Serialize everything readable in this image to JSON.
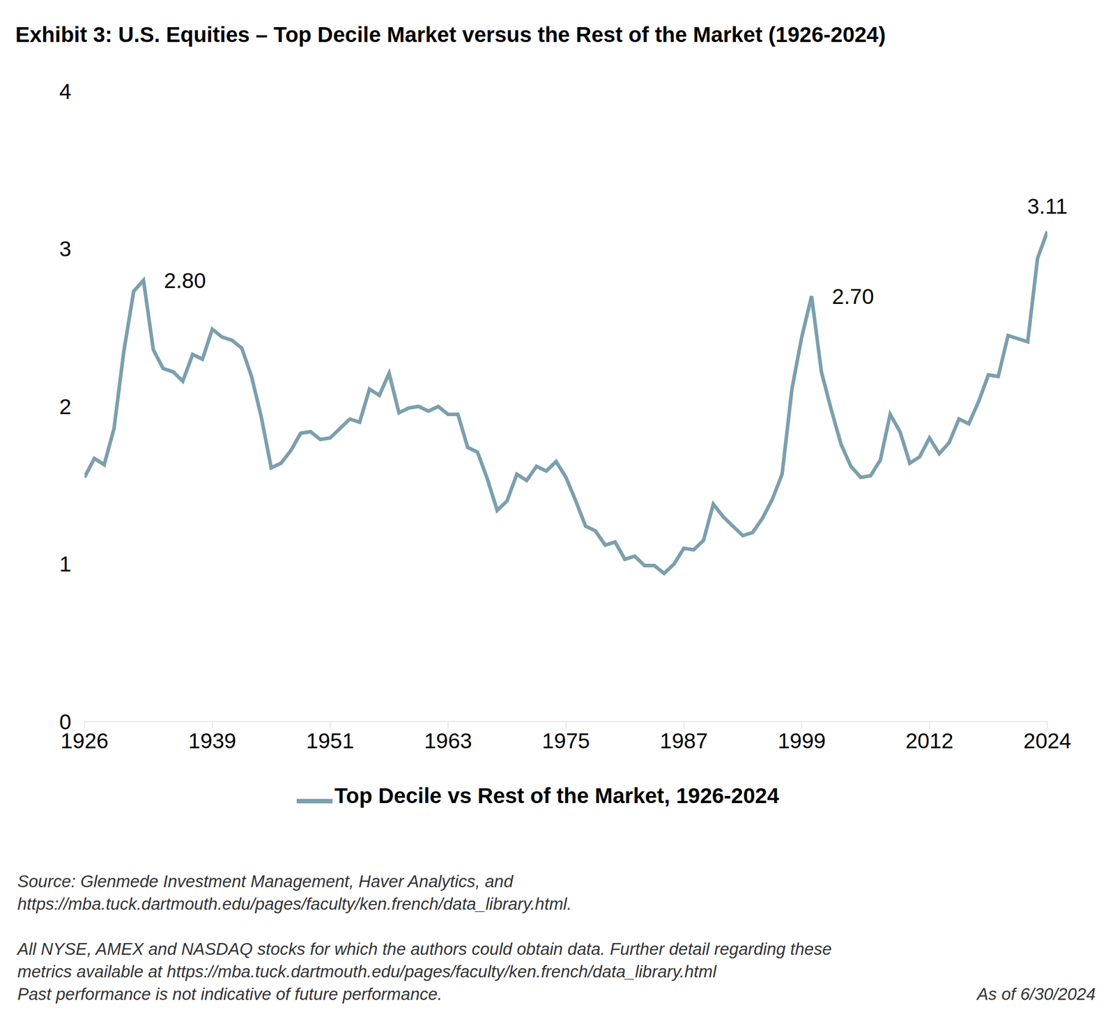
{
  "chart_data": {
    "type": "line",
    "title": "Exhibit 3: U.S. Equities – Top Decile Market versus the Rest of the Market (1926-2024)",
    "x": [
      1926,
      1927,
      1928,
      1929,
      1930,
      1931,
      1932,
      1933,
      1934,
      1935,
      1936,
      1937,
      1938,
      1939,
      1940,
      1941,
      1942,
      1943,
      1944,
      1945,
      1946,
      1947,
      1948,
      1949,
      1950,
      1951,
      1952,
      1953,
      1954,
      1955,
      1956,
      1957,
      1958,
      1959,
      1960,
      1961,
      1962,
      1963,
      1964,
      1965,
      1966,
      1967,
      1968,
      1969,
      1970,
      1971,
      1972,
      1973,
      1974,
      1975,
      1976,
      1977,
      1978,
      1979,
      1980,
      1981,
      1982,
      1983,
      1984,
      1985,
      1986,
      1987,
      1988,
      1989,
      1990,
      1991,
      1992,
      1993,
      1994,
      1995,
      1996,
      1997,
      1998,
      1999,
      2000,
      2001,
      2002,
      2003,
      2004,
      2005,
      2006,
      2007,
      2008,
      2009,
      2010,
      2011,
      2012,
      2013,
      2014,
      2015,
      2016,
      2017,
      2018,
      2019,
      2020,
      2021,
      2022,
      2023,
      2024
    ],
    "series": [
      {
        "name": "Top Decile vs Rest of the Market, 1926-2024",
        "color": "#7b9fad",
        "values": [
          1.55,
          1.67,
          1.63,
          1.86,
          2.35,
          2.73,
          2.8,
          2.36,
          2.24,
          2.22,
          2.16,
          2.33,
          2.3,
          2.49,
          2.44,
          2.42,
          2.37,
          2.19,
          1.93,
          1.61,
          1.64,
          1.72,
          1.83,
          1.84,
          1.79,
          1.8,
          1.86,
          1.92,
          1.9,
          2.11,
          2.07,
          2.21,
          1.96,
          1.99,
          2.0,
          1.97,
          2.0,
          1.95,
          1.95,
          1.74,
          1.71,
          1.54,
          1.34,
          1.4,
          1.57,
          1.53,
          1.62,
          1.59,
          1.65,
          1.55,
          1.4,
          1.24,
          1.21,
          1.12,
          1.14,
          1.03,
          1.05,
          0.99,
          0.99,
          0.94,
          1.0,
          1.1,
          1.09,
          1.15,
          1.38,
          1.3,
          1.24,
          1.18,
          1.2,
          1.29,
          1.41,
          1.57,
          2.11,
          2.44,
          2.7,
          2.22,
          1.98,
          1.76,
          1.62,
          1.55,
          1.56,
          1.66,
          1.95,
          1.84,
          1.64,
          1.68,
          1.8,
          1.7,
          1.77,
          1.92,
          1.89,
          2.03,
          2.2,
          2.19,
          2.45,
          2.43,
          2.41,
          2.94,
          3.11
        ]
      }
    ],
    "xlim": [
      1926,
      2024
    ],
    "xticks": [
      1926,
      1939,
      1951,
      1963,
      1975,
      1987,
      1999,
      2012,
      2024
    ],
    "ylim": [
      0,
      4
    ],
    "yticks": [
      0,
      1,
      2,
      3,
      4
    ],
    "grid": false,
    "legend": "bottom",
    "annotations": [
      {
        "x": 1932,
        "y": 2.8,
        "label": "2.80"
      },
      {
        "x": 2000,
        "y": 2.7,
        "label": "2.70"
      },
      {
        "x": 2024,
        "y": 3.11,
        "label": "3.11"
      }
    ],
    "source": [
      "Source: Glenmede Investment Management, Haver Analytics, and",
      "https://mba.tuck.dartmouth.edu/pages/faculty/ken.french/data_library.html."
    ],
    "notes": [
      "All NYSE, AMEX and NASDAQ stocks for which the authors could obtain data. Further detail regarding these",
      "metrics available at https://mba.tuck.dartmouth.edu/pages/faculty/ken.french/data_library.html",
      "Past performance is not indicative of future performance."
    ],
    "date_note": "As of 6/30/2024"
  }
}
